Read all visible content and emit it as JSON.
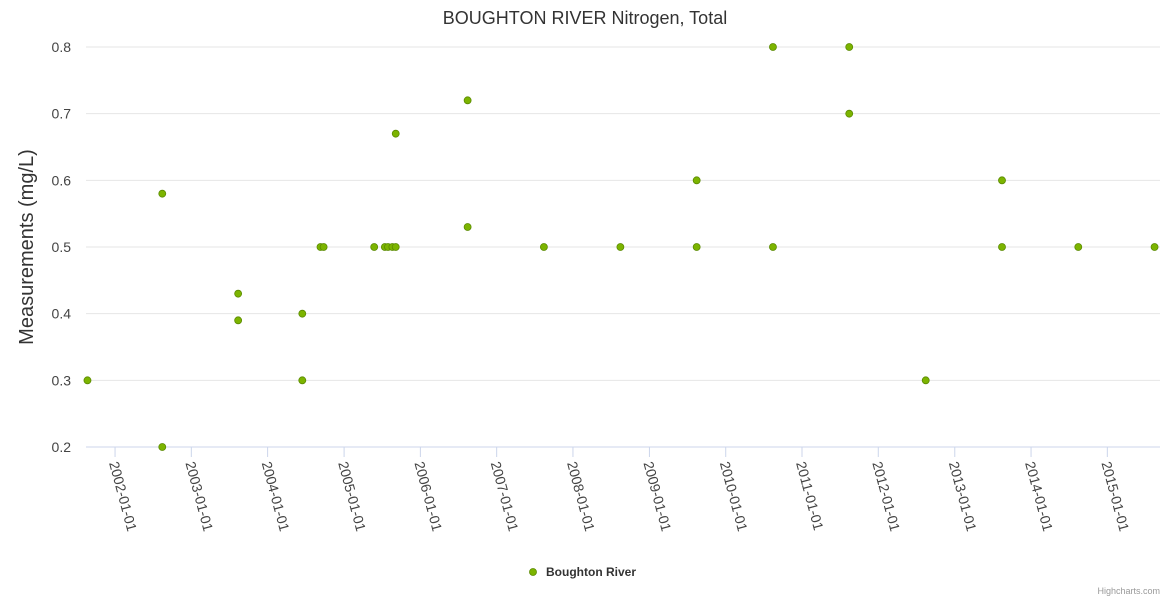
{
  "chart_data": {
    "type": "scatter",
    "title": "BOUGHTON RIVER Nitrogen, Total",
    "ylabel": "Measurements (mg/L)",
    "xlabel": "",
    "ylim": [
      0.2,
      0.8
    ],
    "yticks": [
      "0.2",
      "0.3",
      "0.4",
      "0.5",
      "0.6",
      "0.7",
      "0.8"
    ],
    "xticks": [
      "2002-01-01",
      "2003-01-01",
      "2004-01-01",
      "2005-01-01",
      "2006-01-01",
      "2007-01-01",
      "2008-01-01",
      "2009-01-01",
      "2010-01-01",
      "2011-01-01",
      "2012-01-01",
      "2013-01-01",
      "2014-01-01",
      "2015-01-01"
    ],
    "xlim": [
      "2001-08-15",
      "2015-09-10"
    ],
    "grid": true,
    "legend_position": "bottom-center",
    "series": [
      {
        "name": "Boughton River",
        "color": "#7cb400",
        "marker": "circle",
        "points": [
          {
            "x": "2001-08-22",
            "y": 0.3
          },
          {
            "x": "2002-08-15",
            "y": 0.58
          },
          {
            "x": "2002-08-15",
            "y": 0.2
          },
          {
            "x": "2003-08-13",
            "y": 0.43
          },
          {
            "x": "2003-08-13",
            "y": 0.39
          },
          {
            "x": "2004-06-15",
            "y": 0.4
          },
          {
            "x": "2004-06-15",
            "y": 0.3
          },
          {
            "x": "2004-09-10",
            "y": 0.5
          },
          {
            "x": "2004-09-25",
            "y": 0.5
          },
          {
            "x": "2005-05-25",
            "y": 0.5
          },
          {
            "x": "2005-07-15",
            "y": 0.5
          },
          {
            "x": "2005-07-30",
            "y": 0.5
          },
          {
            "x": "2005-08-20",
            "y": 0.5
          },
          {
            "x": "2005-09-05",
            "y": 0.5
          },
          {
            "x": "2005-09-05",
            "y": 0.67
          },
          {
            "x": "2006-08-15",
            "y": 0.72
          },
          {
            "x": "2006-08-15",
            "y": 0.53
          },
          {
            "x": "2007-08-15",
            "y": 0.5
          },
          {
            "x": "2008-08-15",
            "y": 0.5
          },
          {
            "x": "2009-08-15",
            "y": 0.6
          },
          {
            "x": "2009-08-15",
            "y": 0.5
          },
          {
            "x": "2010-08-15",
            "y": 0.8
          },
          {
            "x": "2010-08-15",
            "y": 0.5
          },
          {
            "x": "2011-08-15",
            "y": 0.8
          },
          {
            "x": "2011-08-15",
            "y": 0.7
          },
          {
            "x": "2012-08-15",
            "y": 0.3
          },
          {
            "x": "2013-08-15",
            "y": 0.6
          },
          {
            "x": "2013-08-15",
            "y": 0.5
          },
          {
            "x": "2014-08-15",
            "y": 0.5
          },
          {
            "x": "2015-08-15",
            "y": 0.5
          }
        ]
      }
    ]
  },
  "credits": "Highcharts.com"
}
